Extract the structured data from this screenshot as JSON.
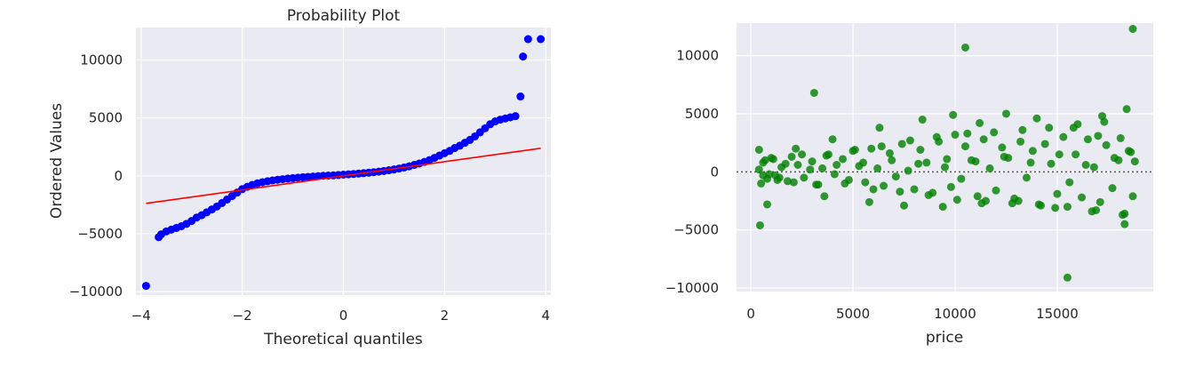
{
  "chart_data": [
    {
      "type": "scatter",
      "title": "Probability Plot",
      "xlabel": "Theoretical quantiles",
      "ylabel": "Ordered Values",
      "xlim": [
        -4.1,
        4.1
      ],
      "ylim": [
        -10300,
        12800
      ],
      "xticks": [
        -4,
        -2,
        0,
        2,
        4
      ],
      "xtick_labels": [
        "−4",
        "−2",
        "0",
        "2",
        "4"
      ],
      "yticks": [
        -10000,
        -5000,
        0,
        5000,
        10000
      ],
      "ytick_labels": [
        "−10000",
        "−5000",
        "0",
        "5000",
        "10000"
      ],
      "grid": true,
      "series": [
        {
          "kind": "points",
          "color": "#0000ff",
          "x": [
            -3.9,
            -3.65,
            -3.6,
            -3.5,
            -3.4,
            -3.3,
            -3.2,
            -3.1,
            -3.0,
            -2.9,
            -2.8,
            -2.7,
            -2.6,
            -2.5,
            -2.4,
            -2.3,
            -2.2,
            -2.1,
            -2.0,
            -1.9,
            -1.8,
            -1.7,
            -1.6,
            -1.5,
            -1.4,
            -1.3,
            -1.2,
            -1.1,
            -1.0,
            -0.9,
            -0.8,
            -0.7,
            -0.6,
            -0.5,
            -0.4,
            -0.3,
            -0.2,
            -0.1,
            0.0,
            0.1,
            0.2,
            0.3,
            0.4,
            0.5,
            0.6,
            0.7,
            0.8,
            0.9,
            1.0,
            1.1,
            1.2,
            1.3,
            1.4,
            1.5,
            1.6,
            1.7,
            1.8,
            1.9,
            2.0,
            2.1,
            2.2,
            2.3,
            2.4,
            2.5,
            2.6,
            2.7,
            2.8,
            2.9,
            3.0,
            3.1,
            3.2,
            3.3,
            3.4,
            3.5,
            3.55,
            3.65,
            3.9
          ],
          "y": [
            -9500,
            -5300,
            -5050,
            -4800,
            -4650,
            -4500,
            -4350,
            -4150,
            -3900,
            -3600,
            -3400,
            -3150,
            -2900,
            -2650,
            -2350,
            -2050,
            -1750,
            -1450,
            -1150,
            -950,
            -780,
            -650,
            -550,
            -470,
            -400,
            -340,
            -290,
            -240,
            -200,
            -160,
            -120,
            -90,
            -60,
            -30,
            0,
            20,
            40,
            70,
            100,
            130,
            160,
            190,
            230,
            270,
            310,
            360,
            420,
            480,
            550,
            630,
            720,
            820,
            940,
            1060,
            1200,
            1360,
            1550,
            1750,
            1950,
            2150,
            2400,
            2600,
            2850,
            3100,
            3400,
            3750,
            4100,
            4450,
            4700,
            4850,
            4950,
            5050,
            5150,
            6850,
            10300,
            11800,
            11800
          ]
        },
        {
          "kind": "line",
          "color": "#ff0000",
          "x": [
            -3.9,
            3.9
          ],
          "y": [
            -2380,
            2380
          ]
        }
      ]
    },
    {
      "type": "scatter",
      "title": "",
      "xlabel": "price",
      "ylabel": "",
      "xlim": [
        -700,
        19700
      ],
      "ylim": [
        -10300,
        12800
      ],
      "xticks": [
        0,
        5000,
        10000,
        15000
      ],
      "xtick_labels": [
        "0",
        "5000",
        "10000",
        "15000"
      ],
      "yticks": [
        -10000,
        -5000,
        0,
        5000,
        10000
      ],
      "ytick_labels": [
        "−10000",
        "−5000",
        "0",
        "5000",
        "10000"
      ],
      "grid": true,
      "reference_line": {
        "y": 0,
        "style": "dotted",
        "color": "#555555"
      },
      "series": [
        {
          "kind": "points",
          "color": "#008000",
          "x": [
            400,
            450,
            600,
            800,
            1000,
            1200,
            1500,
            1800,
            2000,
            2300,
            2600,
            3000,
            3200,
            3500,
            3800,
            4100,
            4500,
            4800,
            5000,
            5300,
            5600,
            5900,
            6200,
            6500,
            6800,
            7100,
            7400,
            7700,
            8000,
            8300,
            8600,
            8900,
            9200,
            9500,
            9800,
            10000,
            10300,
            10500,
            10800,
            11100,
            11400,
            11700,
            12000,
            12300,
            12600,
            12900,
            13200,
            13500,
            13800,
            14100,
            14400,
            14700,
            15000,
            15300,
            15600,
            15900,
            16200,
            16500,
            16800,
            17100,
            17400,
            17700,
            18000,
            18300,
            18600,
            18700,
            18800,
            500,
            700,
            900,
            1100,
            1400,
            1700,
            2100,
            2500,
            2900,
            3300,
            3700,
            4200,
            4600,
            5100,
            5500,
            6000,
            6400,
            6900,
            7300,
            7800,
            8200,
            8700,
            9100,
            9600,
            10100,
            10600,
            11000,
            11500,
            11900,
            12400,
            12800,
            13300,
            13700,
            14200,
            14600,
            15100,
            15500,
            16000,
            16400,
            16900,
            17300,
            17800,
            18200,
            18500,
            3100,
            10500,
            18700,
            15500,
            400,
            800,
            17200,
            18400,
            600,
            2200,
            4000,
            6300,
            8400,
            9900,
            11200,
            12500,
            14000,
            15800,
            17000,
            18100,
            1300,
            3600,
            5800,
            7500,
            9400,
            11300,
            13100,
            14900,
            16700,
            18300
          ],
          "y": [
            200,
            -4600,
            800,
            -600,
            1200,
            -300,
            400,
            -800,
            1300,
            600,
            -500,
            900,
            -1100,
            300,
            1500,
            -200,
            1100,
            -700,
            1800,
            500,
            -900,
            2000,
            300,
            -1200,
            1600,
            -400,
            2400,
            100,
            -1500,
            1900,
            800,
            -1800,
            2600,
            400,
            -1300,
            3200,
            -600,
            2200,
            1000,
            -2100,
            2800,
            300,
            -1600,
            2100,
            1200,
            -2300,
            2600,
            -500,
            1800,
            -2800,
            2400,
            700,
            -1900,
            3000,
            -900,
            1500,
            -2200,
            2800,
            400,
            -2600,
            2300,
            -1400,
            1000,
            -3600,
            1700,
            -2100,
            900,
            -1000,
            1000,
            -200,
            1100,
            -500,
            700,
            -900,
            1500,
            200,
            -1100,
            1400,
            600,
            -1000,
            1900,
            800,
            -1500,
            2200,
            1000,
            -1700,
            2700,
            700,
            -2000,
            3000,
            1100,
            -2400,
            3300,
            900,
            -2500,
            3400,
            1300,
            -2700,
            3600,
            800,
            -2900,
            3800,
            1500,
            -3000,
            4100,
            600,
            -3300,
            4300,
            1200,
            -3700,
            1800,
            6800,
            10700,
            12300,
            -9100,
            1900,
            -2800,
            4800,
            5400,
            -300,
            2000,
            2800,
            3800,
            4500,
            4900,
            4200,
            5000,
            4600,
            3800,
            3100,
            2900,
            -700,
            -2100,
            -2600,
            -2900,
            -3000,
            -2700,
            -2500,
            -3100,
            -3400,
            -4500
          ]
        }
      ]
    }
  ]
}
